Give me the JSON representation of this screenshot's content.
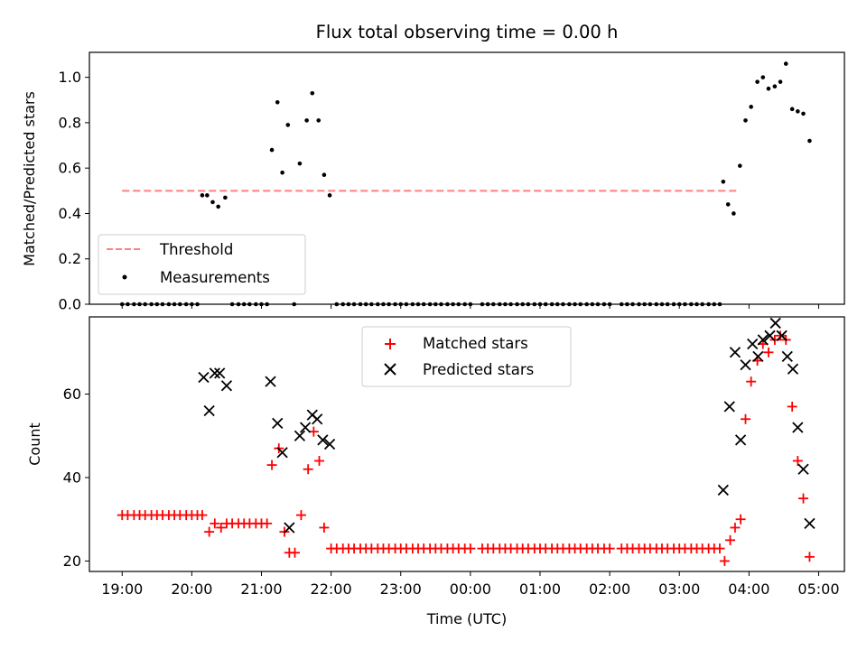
{
  "chart_data": [
    {
      "type": "scatter",
      "title": "Flux total observing time = 0.00 h",
      "xlabel": "",
      "ylabel": "Matched/Predicted stars",
      "ylim": [
        0,
        1.11
      ],
      "yticks": [
        0.0,
        0.2,
        0.4,
        0.6,
        0.8,
        1.0
      ],
      "ytick_labels": [
        "0.0",
        "0.2",
        "0.4",
        "0.6",
        "0.8",
        "1.0"
      ],
      "legend_position": "lower-left",
      "series": [
        {
          "name": "Threshold",
          "style": "dashed-line",
          "color": "#ff7f7f",
          "x": [
            19.0,
            23.0,
            27.87
          ],
          "y": [
            0.5,
            0.5,
            0.5
          ]
        },
        {
          "name": "Measurements",
          "style": "dot",
          "color": "#000000",
          "points": [
            [
              19.0,
              0
            ],
            [
              19.08,
              0
            ],
            [
              19.17,
              0
            ],
            [
              19.25,
              0
            ],
            [
              19.33,
              0
            ],
            [
              19.42,
              0
            ],
            [
              19.5,
              0
            ],
            [
              19.58,
              0
            ],
            [
              19.67,
              0
            ],
            [
              19.75,
              0
            ],
            [
              19.83,
              0
            ],
            [
              19.92,
              0
            ],
            [
              20.0,
              0
            ],
            [
              20.08,
              0
            ],
            [
              20.15,
              0.48
            ],
            [
              20.22,
              0.48
            ],
            [
              20.3,
              0.45
            ],
            [
              20.38,
              0.43
            ],
            [
              20.48,
              0.47
            ],
            [
              20.58,
              0
            ],
            [
              20.67,
              0
            ],
            [
              20.75,
              0
            ],
            [
              20.83,
              0
            ],
            [
              20.92,
              0
            ],
            [
              21.0,
              0
            ],
            [
              21.08,
              0
            ],
            [
              21.15,
              0.68
            ],
            [
              21.23,
              0.89
            ],
            [
              21.3,
              0.58
            ],
            [
              21.38,
              0.79
            ],
            [
              21.47,
              0
            ],
            [
              21.55,
              0.62
            ],
            [
              21.65,
              0.81
            ],
            [
              21.73,
              0.93
            ],
            [
              21.82,
              0.81
            ],
            [
              21.9,
              0.57
            ],
            [
              21.98,
              0.48
            ],
            [
              22.08,
              0
            ],
            [
              22.17,
              0
            ],
            [
              22.25,
              0
            ],
            [
              22.33,
              0
            ],
            [
              22.42,
              0
            ],
            [
              22.5,
              0
            ],
            [
              22.58,
              0
            ],
            [
              22.67,
              0
            ],
            [
              22.75,
              0
            ],
            [
              22.83,
              0
            ],
            [
              22.92,
              0
            ],
            [
              23.0,
              0
            ],
            [
              23.08,
              0
            ],
            [
              23.17,
              0
            ],
            [
              23.25,
              0
            ],
            [
              23.33,
              0
            ],
            [
              23.42,
              0
            ],
            [
              23.5,
              0
            ],
            [
              23.58,
              0
            ],
            [
              23.67,
              0
            ],
            [
              23.75,
              0
            ],
            [
              23.83,
              0
            ],
            [
              23.92,
              0
            ],
            [
              24.0,
              0
            ],
            [
              24.17,
              0
            ],
            [
              24.25,
              0
            ],
            [
              24.33,
              0
            ],
            [
              24.42,
              0
            ],
            [
              24.5,
              0
            ],
            [
              24.58,
              0
            ],
            [
              24.67,
              0
            ],
            [
              24.75,
              0
            ],
            [
              24.83,
              0
            ],
            [
              24.92,
              0
            ],
            [
              25.0,
              0
            ],
            [
              25.08,
              0
            ],
            [
              25.17,
              0
            ],
            [
              25.25,
              0
            ],
            [
              25.33,
              0
            ],
            [
              25.42,
              0
            ],
            [
              25.5,
              0
            ],
            [
              25.58,
              0
            ],
            [
              25.67,
              0
            ],
            [
              25.75,
              0
            ],
            [
              25.83,
              0
            ],
            [
              25.92,
              0
            ],
            [
              26.0,
              0
            ],
            [
              26.17,
              0
            ],
            [
              26.25,
              0
            ],
            [
              26.33,
              0
            ],
            [
              26.42,
              0
            ],
            [
              26.5,
              0
            ],
            [
              26.58,
              0
            ],
            [
              26.67,
              0
            ],
            [
              26.75,
              0
            ],
            [
              26.83,
              0
            ],
            [
              26.92,
              0
            ],
            [
              27.0,
              0
            ],
            [
              27.08,
              0
            ],
            [
              27.17,
              0
            ],
            [
              27.25,
              0
            ],
            [
              27.33,
              0
            ],
            [
              27.42,
              0
            ],
            [
              27.5,
              0
            ],
            [
              27.58,
              0
            ],
            [
              27.63,
              0.54
            ],
            [
              27.7,
              0.44
            ],
            [
              27.78,
              0.4
            ],
            [
              27.87,
              0.61
            ],
            [
              27.95,
              0.81
            ],
            [
              28.03,
              0.87
            ],
            [
              28.12,
              0.98
            ],
            [
              28.2,
              1.0
            ],
            [
              28.28,
              0.95
            ],
            [
              28.37,
              0.96
            ],
            [
              28.45,
              0.98
            ],
            [
              28.53,
              1.06
            ],
            [
              28.62,
              0.86
            ],
            [
              28.7,
              0.85
            ],
            [
              28.78,
              0.84
            ],
            [
              28.87,
              0.72
            ]
          ]
        }
      ]
    },
    {
      "type": "scatter",
      "title": "",
      "xlabel": "Time (UTC)",
      "ylabel": "Count",
      "xlim": [
        18.53,
        29.37
      ],
      "ylim": [
        17.5,
        78.5
      ],
      "yticks": [
        20,
        40,
        60
      ],
      "ytick_labels": [
        "20",
        "40",
        "60"
      ],
      "xticks": [
        19,
        20,
        21,
        22,
        23,
        24,
        25,
        26,
        27,
        28,
        29
      ],
      "xtick_labels": [
        "19:00",
        "20:00",
        "21:00",
        "22:00",
        "23:00",
        "00:00",
        "01:00",
        "02:00",
        "03:00",
        "04:00",
        "05:00"
      ],
      "legend_position": "upper-center",
      "series": [
        {
          "name": "Matched stars",
          "marker": "+",
          "color": "#ff0000",
          "points": [
            [
              19.0,
              31
            ],
            [
              19.08,
              31
            ],
            [
              19.17,
              31
            ],
            [
              19.25,
              31
            ],
            [
              19.33,
              31
            ],
            [
              19.42,
              31
            ],
            [
              19.5,
              31
            ],
            [
              19.58,
              31
            ],
            [
              19.67,
              31
            ],
            [
              19.75,
              31
            ],
            [
              19.83,
              31
            ],
            [
              19.92,
              31
            ],
            [
              20.0,
              31
            ],
            [
              20.08,
              31
            ],
            [
              20.15,
              31
            ],
            [
              20.25,
              27
            ],
            [
              20.33,
              29
            ],
            [
              20.42,
              28
            ],
            [
              20.5,
              29
            ],
            [
              20.58,
              29
            ],
            [
              20.67,
              29
            ],
            [
              20.75,
              29
            ],
            [
              20.83,
              29
            ],
            [
              20.92,
              29
            ],
            [
              21.0,
              29
            ],
            [
              21.08,
              29
            ],
            [
              21.15,
              43
            ],
            [
              21.25,
              47
            ],
            [
              21.33,
              27
            ],
            [
              21.4,
              22
            ],
            [
              21.48,
              22
            ],
            [
              21.57,
              31
            ],
            [
              21.67,
              42
            ],
            [
              21.75,
              51
            ],
            [
              21.83,
              44
            ],
            [
              21.9,
              28
            ],
            [
              22.0,
              23
            ],
            [
              22.08,
              23
            ],
            [
              22.17,
              23
            ],
            [
              22.25,
              23
            ],
            [
              22.33,
              23
            ],
            [
              22.42,
              23
            ],
            [
              22.5,
              23
            ],
            [
              22.58,
              23
            ],
            [
              22.67,
              23
            ],
            [
              22.75,
              23
            ],
            [
              22.83,
              23
            ],
            [
              22.92,
              23
            ],
            [
              23.0,
              23
            ],
            [
              23.08,
              23
            ],
            [
              23.17,
              23
            ],
            [
              23.25,
              23
            ],
            [
              23.33,
              23
            ],
            [
              23.42,
              23
            ],
            [
              23.5,
              23
            ],
            [
              23.58,
              23
            ],
            [
              23.67,
              23
            ],
            [
              23.75,
              23
            ],
            [
              23.83,
              23
            ],
            [
              23.92,
              23
            ],
            [
              24.0,
              23
            ],
            [
              24.17,
              23
            ],
            [
              24.25,
              23
            ],
            [
              24.33,
              23
            ],
            [
              24.42,
              23
            ],
            [
              24.5,
              23
            ],
            [
              24.58,
              23
            ],
            [
              24.67,
              23
            ],
            [
              24.75,
              23
            ],
            [
              24.83,
              23
            ],
            [
              24.92,
              23
            ],
            [
              25.0,
              23
            ],
            [
              25.08,
              23
            ],
            [
              25.17,
              23
            ],
            [
              25.25,
              23
            ],
            [
              25.33,
              23
            ],
            [
              25.42,
              23
            ],
            [
              25.5,
              23
            ],
            [
              25.58,
              23
            ],
            [
              25.67,
              23
            ],
            [
              25.75,
              23
            ],
            [
              25.83,
              23
            ],
            [
              25.92,
              23
            ],
            [
              26.0,
              23
            ],
            [
              26.17,
              23
            ],
            [
              26.25,
              23
            ],
            [
              26.33,
              23
            ],
            [
              26.42,
              23
            ],
            [
              26.5,
              23
            ],
            [
              26.58,
              23
            ],
            [
              26.67,
              23
            ],
            [
              26.75,
              23
            ],
            [
              26.83,
              23
            ],
            [
              26.92,
              23
            ],
            [
              27.0,
              23
            ],
            [
              27.08,
              23
            ],
            [
              27.17,
              23
            ],
            [
              27.25,
              23
            ],
            [
              27.33,
              23
            ],
            [
              27.42,
              23
            ],
            [
              27.5,
              23
            ],
            [
              27.58,
              23
            ],
            [
              27.65,
              20
            ],
            [
              27.73,
              25
            ],
            [
              27.8,
              28
            ],
            [
              27.88,
              30
            ],
            [
              27.95,
              54
            ],
            [
              28.03,
              63
            ],
            [
              28.12,
              68
            ],
            [
              28.2,
              72
            ],
            [
              28.28,
              70
            ],
            [
              28.37,
              73
            ],
            [
              28.45,
              74
            ],
            [
              28.53,
              73
            ],
            [
              28.62,
              57
            ],
            [
              28.7,
              44
            ],
            [
              28.78,
              35
            ],
            [
              28.87,
              21
            ]
          ]
        },
        {
          "name": "Predicted stars",
          "marker": "x",
          "color": "#000000",
          "points": [
            [
              20.17,
              64
            ],
            [
              20.25,
              56
            ],
            [
              20.33,
              65
            ],
            [
              20.4,
              65
            ],
            [
              20.5,
              62
            ],
            [
              21.13,
              63
            ],
            [
              21.23,
              53
            ],
            [
              21.3,
              46
            ],
            [
              21.4,
              28
            ],
            [
              21.55,
              50
            ],
            [
              21.63,
              52
            ],
            [
              21.73,
              55
            ],
            [
              21.8,
              54
            ],
            [
              21.88,
              49
            ],
            [
              21.98,
              48
            ],
            [
              27.63,
              37
            ],
            [
              27.72,
              57
            ],
            [
              27.8,
              70
            ],
            [
              27.88,
              49
            ],
            [
              27.95,
              67
            ],
            [
              28.05,
              72
            ],
            [
              28.13,
              69
            ],
            [
              28.2,
              73
            ],
            [
              28.3,
              74
            ],
            [
              28.38,
              77
            ],
            [
              28.47,
              74
            ],
            [
              28.55,
              69
            ],
            [
              28.63,
              66
            ],
            [
              28.7,
              52
            ],
            [
              28.78,
              42
            ],
            [
              28.87,
              29
            ]
          ]
        }
      ]
    }
  ]
}
